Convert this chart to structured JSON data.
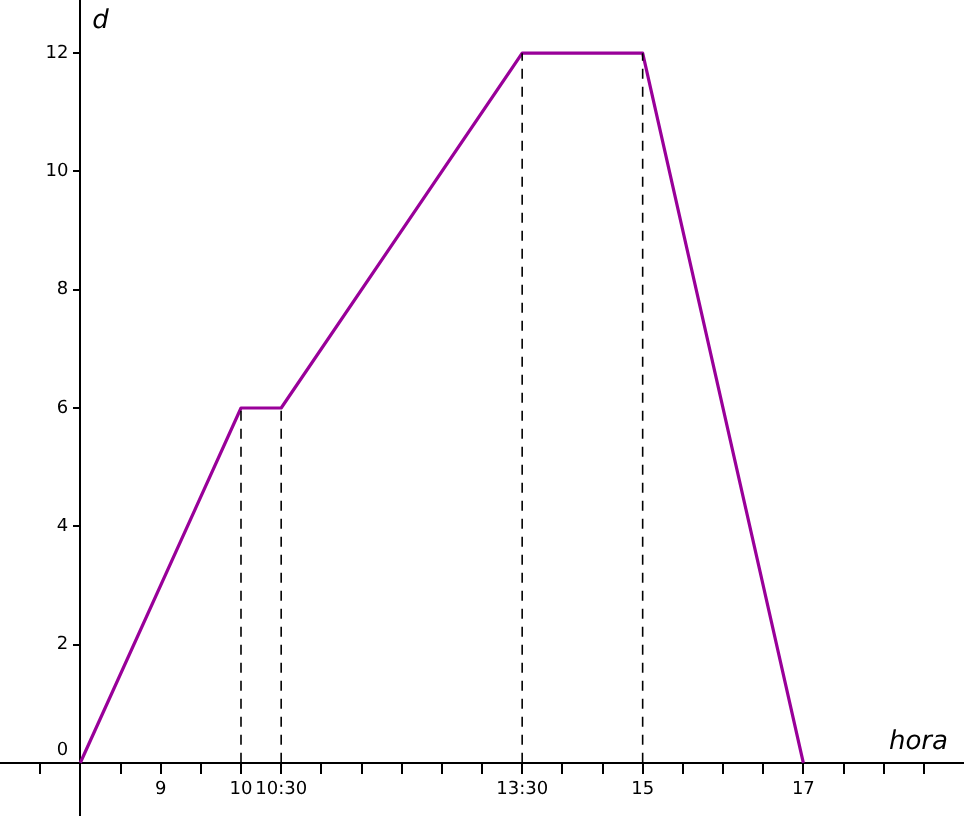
{
  "chart_data": {
    "type": "line",
    "xlabel": "hora",
    "ylabel": "d",
    "x": [
      8,
      10,
      10.5,
      13.5,
      15,
      17
    ],
    "series": [
      {
        "color": "#990099",
        "values": [
          0,
          6,
          6,
          12,
          12,
          0
        ]
      }
    ],
    "xlim": [
      7,
      19
    ],
    "ylim": [
      -0.9,
      12.9
    ],
    "xticks": [
      {
        "value": 7.5,
        "label": null
      },
      {
        "value": 8.5,
        "label": null
      },
      9,
      {
        "value": 9.5,
        "label": null
      },
      10,
      {
        "value": 10.5,
        "label": "10:30"
      },
      {
        "value": 11,
        "label": null
      },
      {
        "value": 11.5,
        "label": null
      },
      {
        "value": 12,
        "label": null
      },
      {
        "value": 12.5,
        "label": null
      },
      {
        "value": 13,
        "label": null
      },
      {
        "value": 13.5,
        "label": "13:30"
      },
      {
        "value": 14,
        "label": null
      },
      {
        "value": 14.5,
        "label": null
      },
      15,
      {
        "value": 15.5,
        "label": null
      },
      {
        "value": 16,
        "label": null
      },
      {
        "value": 16.5,
        "label": null
      },
      17,
      {
        "value": 17.5,
        "label": null
      },
      {
        "value": 18,
        "label": null
      },
      {
        "value": 18.5,
        "label": null
      }
    ],
    "yticks": [
      0,
      2,
      4,
      6,
      8,
      10,
      12
    ],
    "ref_lines": [
      {
        "axis": "x",
        "value": 10,
        "line_style": "dashed"
      },
      {
        "axis": "x",
        "value": 10.5,
        "line_style": "dashed"
      },
      {
        "axis": "x",
        "value": 13.5,
        "line_style": "dashed"
      },
      {
        "axis": "x",
        "value": 15,
        "line_style": "dashed"
      }
    ],
    "grid": false,
    "legend": false,
    "marker": "none",
    "line_style": "solid"
  }
}
